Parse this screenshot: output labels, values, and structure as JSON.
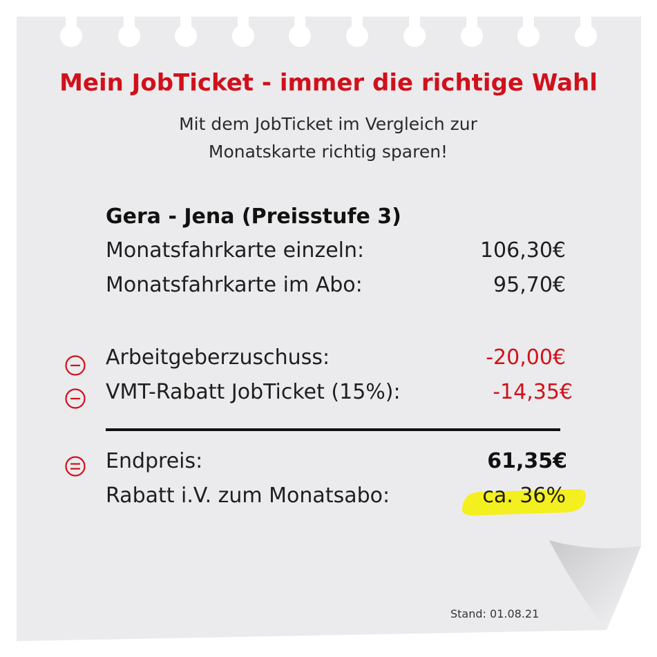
{
  "header": {
    "title": "Mein JobTicket - immer die richtige Wahl",
    "subtitle_line1": "Mit dem JobTicket im Vergleich zur",
    "subtitle_line2": "Monatskarte richtig sparen!"
  },
  "route": {
    "heading": "Gera - Jena (Preisstufe 3)"
  },
  "prices": [
    {
      "label": "Monatsfahrkarte einzeln:",
      "value": "106,30€"
    },
    {
      "label": "Monatsfahrkarte im Abo:",
      "value": "95,70€"
    }
  ],
  "deductions": [
    {
      "label": "Arbeitgeberzuschuss:",
      "value": "-20,00€",
      "icon": "minus-circle-icon"
    },
    {
      "label": "VMT-Rabatt JobTicket (15%):",
      "value": "-14,35€",
      "icon": "minus-circle-icon"
    }
  ],
  "result": {
    "label": "Endpreis:",
    "value": "61,35€",
    "icon": "equals-circle-icon",
    "discount_label": "Rabatt i.V. zum Monatsabo:",
    "discount_value": "ca. 36%"
  },
  "footer": {
    "stand": "Stand: 01.08.21"
  },
  "colors": {
    "accent_red": "#d0111b",
    "highlight_yellow": "#f4f01f",
    "paper": "#ebebed"
  }
}
